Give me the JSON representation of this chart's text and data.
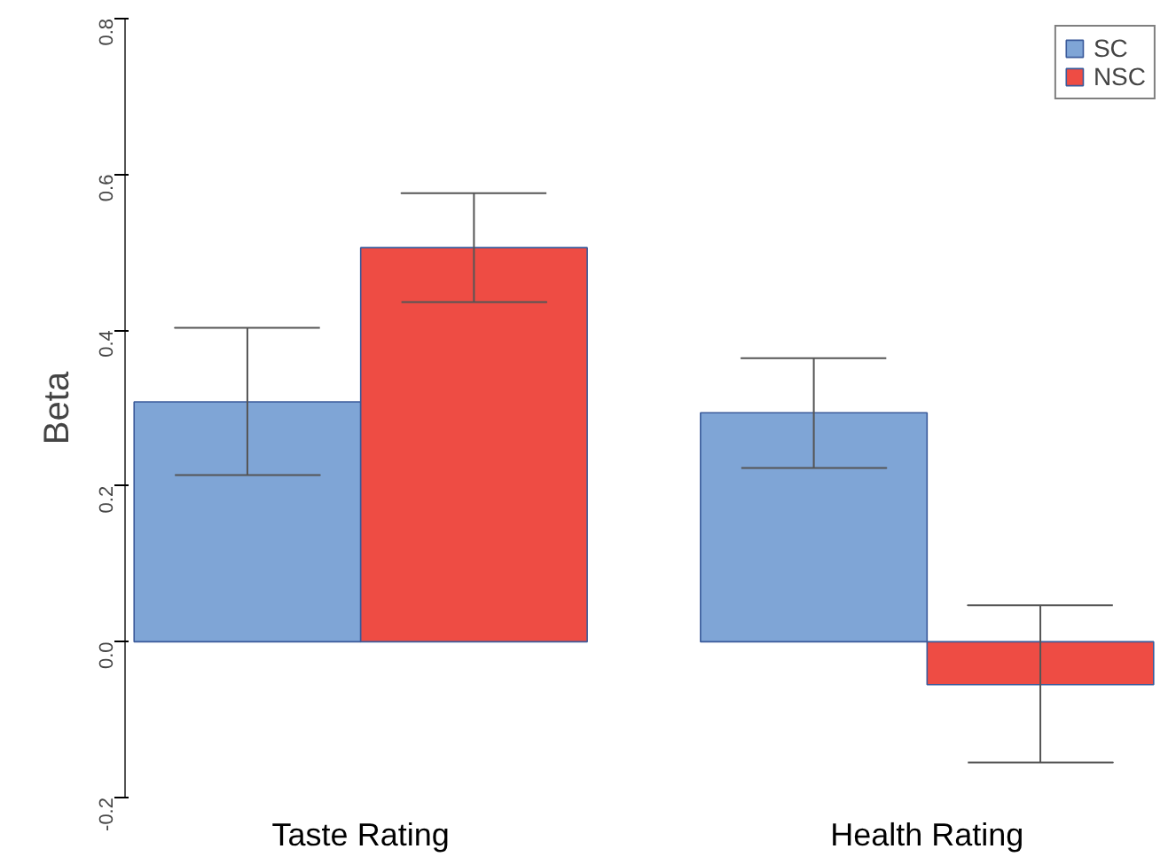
{
  "chart_data": {
    "type": "bar",
    "ylabel": "Beta",
    "categories": [
      "Taste Rating",
      "Health Rating"
    ],
    "series": [
      {
        "name": "SC",
        "color": "#7fa5d6",
        "values": [
          0.308,
          0.294
        ],
        "errors": [
          [
            0.214,
            0.403
          ],
          [
            0.223,
            0.364
          ]
        ]
      },
      {
        "name": "NSC",
        "color": "#ee4c44",
        "values": [
          0.506,
          -0.055
        ],
        "errors": [
          [
            0.436,
            0.576
          ],
          [
            -0.155,
            0.047
          ]
        ]
      }
    ],
    "ylim": [
      -0.2,
      0.8
    ],
    "yticks": [
      -0.2,
      {
        "value": 0,
        "label": "0.0"
      },
      0.2,
      0.4,
      0.6,
      0.8
    ],
    "grid": false,
    "legend": "top right"
  }
}
